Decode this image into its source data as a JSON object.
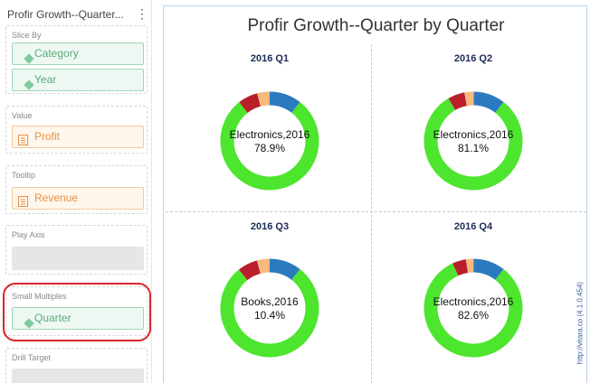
{
  "panel": {
    "title": "Profir Growth--Quarter...",
    "menu_glyph": "⋮",
    "wells": [
      {
        "label": "Slice By",
        "chips": [
          "Category",
          "Year"
        ]
      },
      {
        "label": "Value",
        "chips": [
          "Profit"
        ]
      },
      {
        "label": "Tooltip",
        "chips": [
          "Revenue"
        ]
      },
      {
        "label": "Play Axis"
      },
      {
        "label": "Small Multiples",
        "chips": [
          "Quarter"
        ]
      },
      {
        "label": "Drill Target"
      }
    ]
  },
  "chart": {
    "title": "Profir Growth--Quarter by Quarter",
    "watermark": "http://vitara.co (4.1.0.454)"
  },
  "chart_data": {
    "type": "pie",
    "variant": "donut small multiples",
    "colors": {
      "green": "#4de52e",
      "blue": "#2a7ac0",
      "peach": "#f7b97c",
      "red": "#b91f2b"
    },
    "multiples": [
      {
        "title": "2016 Q1",
        "center_label": "Electronics,2016",
        "center_value": "78.9%",
        "slices": [
          {
            "color": "green",
            "value": 78.9
          },
          {
            "color": "red",
            "value": 6.5
          },
          {
            "color": "peach",
            "value": 4.1
          },
          {
            "color": "blue",
            "value": 10.5
          }
        ]
      },
      {
        "title": "2016 Q2",
        "center_label": "Electronics,2016",
        "center_value": "81.1%",
        "slices": [
          {
            "color": "green",
            "value": 81.1
          },
          {
            "color": "red",
            "value": 5.5
          },
          {
            "color": "peach",
            "value": 3.1
          },
          {
            "color": "blue",
            "value": 10.3
          }
        ]
      },
      {
        "title": "2016 Q3",
        "center_label": "Books,2016",
        "center_value": "10.4%",
        "slices": [
          {
            "color": "green",
            "value": 78.0
          },
          {
            "color": "red",
            "value": 6.5
          },
          {
            "color": "peach",
            "value": 4.1
          },
          {
            "color": "blue",
            "value": 10.4
          }
        ]
      },
      {
        "title": "2016 Q4",
        "center_label": "Electronics,2016",
        "center_value": "82.6%",
        "slices": [
          {
            "color": "green",
            "value": 82.6
          },
          {
            "color": "red",
            "value": 4.5
          },
          {
            "color": "peach",
            "value": 2.5
          },
          {
            "color": "blue",
            "value": 10.4
          }
        ]
      }
    ]
  }
}
